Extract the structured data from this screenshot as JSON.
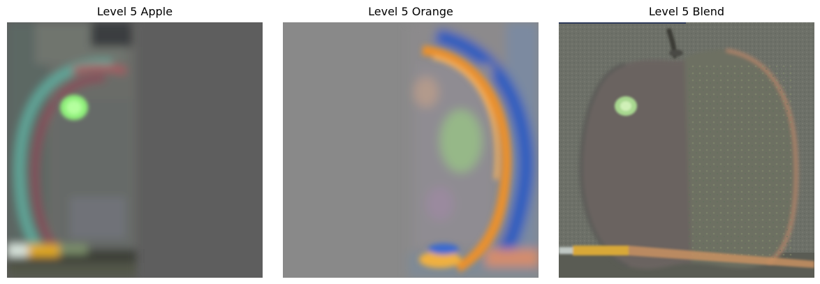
{
  "panels": [
    {
      "title": "Level 5 Apple"
    },
    {
      "title": "Level 5 Orange"
    },
    {
      "title": "Level 5 Blend"
    }
  ],
  "colors": {
    "apple_background": "#5e5e5e",
    "orange_background": "#898989",
    "blend_background": "#6d7068",
    "orange_ring": "#e8902e",
    "blue_halo": "#2a5cc0",
    "green_highlight": "#8ff07a",
    "pencil_yellow": "#e0a820"
  }
}
